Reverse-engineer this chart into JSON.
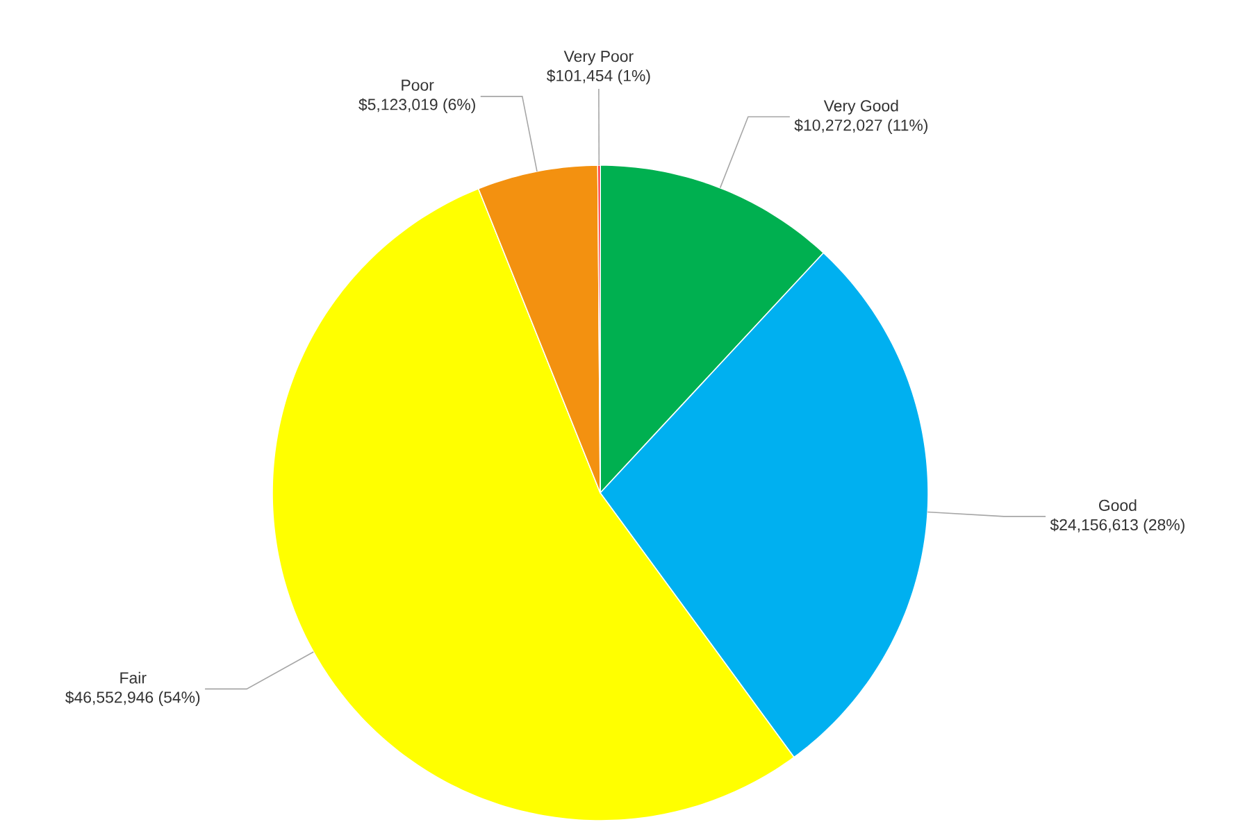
{
  "chart_data": {
    "type": "pie",
    "categories": [
      "Very Good",
      "Good",
      "Fair",
      "Poor",
      "Very Poor"
    ],
    "values": [
      10272027,
      24156613,
      46552946,
      5123019,
      101454
    ],
    "value_labels": [
      "$10,272,027 (11%)",
      "$24,156,613 (28%)",
      "$46,552,946 (54%)",
      "$5,123,019 (6%)",
      "$101,454 (1%)"
    ],
    "colors": [
      "#00b050",
      "#00b0f0",
      "#ffff00",
      "#f39110",
      "#ff0000"
    ]
  }
}
